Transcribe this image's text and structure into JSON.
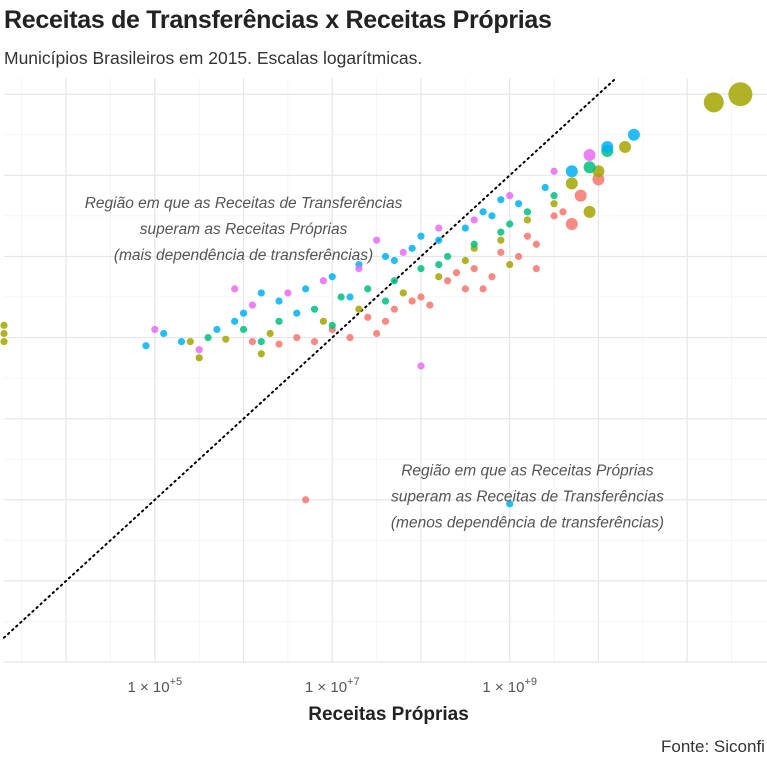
{
  "chart_data": {
    "type": "scatter",
    "title": "Receitas de Transferências x Receitas Próprias",
    "subtitle": "Municípios Brasileiros em 2015. Escalas logarítmicas.",
    "xlabel": "Receitas Próprias",
    "ylabel": "",
    "caption": "Fonte: Siconfi",
    "x_scale": "log10",
    "y_scale": "log10",
    "xlim": [
      3.3,
      11.9
    ],
    "ylim": [
      3.0,
      10.2
    ],
    "x_ticks": [
      {
        "value": 5,
        "label_base": "1 × 10",
        "label_exp": "+5"
      },
      {
        "value": 7,
        "label_base": "1 × 10",
        "label_exp": "+7"
      },
      {
        "value": 9,
        "label_base": "1 × 10",
        "label_exp": "+9"
      }
    ],
    "grid": true,
    "legend": "none",
    "reference_line": {
      "type": "identity",
      "style": "dotted",
      "color": "#000000"
    },
    "annotations": [
      {
        "lines": [
          "Região em que as Receitas de Transferências",
          "superam as Receitas Próprias",
          "(mais dependência de transferências)"
        ],
        "x": 6.0,
        "y": 8.6
      },
      {
        "lines": [
          "Região em que as Receitas Próprias",
          "superam as Receitas de Transferências",
          "(menos dependência de transferências)"
        ],
        "x": 9.2,
        "y": 5.3
      }
    ],
    "colors": [
      "#F8766D",
      "#A3A500",
      "#00BF7D",
      "#00B0F6",
      "#E76BF3"
    ],
    "series": [
      {
        "group": 1,
        "color": "#F8766D",
        "points": [
          [
            6.1,
            6.95
          ],
          [
            6.6,
            7.0
          ],
          [
            7.0,
            7.1
          ],
          [
            7.4,
            7.25
          ],
          [
            7.7,
            7.35
          ],
          [
            8.0,
            7.5
          ],
          [
            8.3,
            7.7
          ],
          [
            8.6,
            7.85
          ],
          [
            8.9,
            8.05
          ],
          [
            9.2,
            8.25
          ],
          [
            9.5,
            8.5
          ],
          [
            9.8,
            8.75
          ],
          [
            6.8,
            6.95
          ],
          [
            7.2,
            7.0
          ],
          [
            7.6,
            7.2
          ],
          [
            8.1,
            7.4
          ],
          [
            8.5,
            7.6
          ],
          [
            8.8,
            7.75
          ],
          [
            9.1,
            8.0
          ],
          [
            9.6,
            8.55
          ],
          [
            10.0,
            8.95
          ],
          [
            6.4,
            6.92
          ],
          [
            7.9,
            7.45
          ],
          [
            8.4,
            7.8
          ],
          [
            6.7,
            5.0
          ],
          [
            7.5,
            7.05
          ],
          [
            8.7,
            7.6
          ],
          [
            9.3,
            8.15
          ],
          [
            9.7,
            8.4
          ],
          [
            9.3,
            7.85
          ]
        ]
      },
      {
        "group": 2,
        "color": "#A3A500",
        "points": [
          [
            5.4,
            6.95
          ],
          [
            5.8,
            6.98
          ],
          [
            6.3,
            7.05
          ],
          [
            6.9,
            7.2
          ],
          [
            7.3,
            7.35
          ],
          [
            7.8,
            7.55
          ],
          [
            8.2,
            7.75
          ],
          [
            8.5,
            7.95
          ],
          [
            8.9,
            8.2
          ],
          [
            9.2,
            8.45
          ],
          [
            9.5,
            8.65
          ],
          [
            9.7,
            8.9
          ],
          [
            10.0,
            9.05
          ],
          [
            10.3,
            9.35
          ],
          [
            11.3,
            9.9
          ],
          [
            11.6,
            10.0
          ],
          [
            3.3,
            7.05
          ],
          [
            3.3,
            7.15
          ],
          [
            3.3,
            6.95
          ],
          [
            5.5,
            6.75
          ],
          [
            6.2,
            6.8
          ],
          [
            8.6,
            8.1
          ],
          [
            9.0,
            7.9
          ],
          [
            9.9,
            8.55
          ]
        ]
      },
      {
        "group": 3,
        "color": "#00BF7D",
        "points": [
          [
            5.6,
            7.0
          ],
          [
            6.0,
            7.1
          ],
          [
            6.4,
            7.2
          ],
          [
            6.8,
            7.35
          ],
          [
            7.1,
            7.5
          ],
          [
            7.4,
            7.6
          ],
          [
            7.7,
            7.7
          ],
          [
            8.0,
            7.85
          ],
          [
            8.3,
            8.0
          ],
          [
            8.6,
            8.15
          ],
          [
            8.9,
            8.3
          ],
          [
            9.2,
            8.55
          ],
          [
            9.5,
            8.75
          ],
          [
            9.9,
            9.1
          ],
          [
            10.1,
            9.3
          ],
          [
            6.2,
            6.95
          ],
          [
            7.0,
            7.15
          ],
          [
            7.6,
            7.45
          ],
          [
            8.2,
            7.9
          ],
          [
            9.0,
            8.4
          ]
        ]
      },
      {
        "group": 4,
        "color": "#00B0F6",
        "points": [
          [
            4.9,
            6.9
          ],
          [
            5.3,
            6.95
          ],
          [
            5.7,
            7.1
          ],
          [
            6.0,
            7.3
          ],
          [
            6.4,
            7.45
          ],
          [
            6.7,
            7.6
          ],
          [
            7.0,
            7.75
          ],
          [
            7.3,
            7.9
          ],
          [
            7.6,
            8.0
          ],
          [
            7.9,
            8.1
          ],
          [
            8.2,
            8.2
          ],
          [
            8.5,
            8.35
          ],
          [
            8.8,
            8.5
          ],
          [
            9.1,
            8.65
          ],
          [
            9.4,
            8.85
          ],
          [
            9.7,
            9.05
          ],
          [
            10.1,
            9.35
          ],
          [
            10.4,
            9.5
          ],
          [
            5.1,
            7.05
          ],
          [
            5.9,
            7.2
          ],
          [
            6.6,
            7.3
          ],
          [
            7.2,
            7.5
          ],
          [
            8.0,
            8.25
          ],
          [
            8.7,
            8.55
          ],
          [
            9.0,
            4.95
          ],
          [
            7.7,
            7.95
          ],
          [
            6.2,
            7.55
          ],
          [
            8.9,
            8.7
          ]
        ]
      },
      {
        "group": 5,
        "color": "#E76BF3",
        "points": [
          [
            5.0,
            7.1
          ],
          [
            5.5,
            6.85
          ],
          [
            6.1,
            7.4
          ],
          [
            6.5,
            7.55
          ],
          [
            6.9,
            7.7
          ],
          [
            7.3,
            7.85
          ],
          [
            7.8,
            8.05
          ],
          [
            8.2,
            8.35
          ],
          [
            8.6,
            8.45
          ],
          [
            9.0,
            8.75
          ],
          [
            9.5,
            9.05
          ],
          [
            9.9,
            9.25
          ],
          [
            8.0,
            6.65
          ],
          [
            5.9,
            7.6
          ],
          [
            7.5,
            8.2
          ]
        ]
      }
    ]
  }
}
